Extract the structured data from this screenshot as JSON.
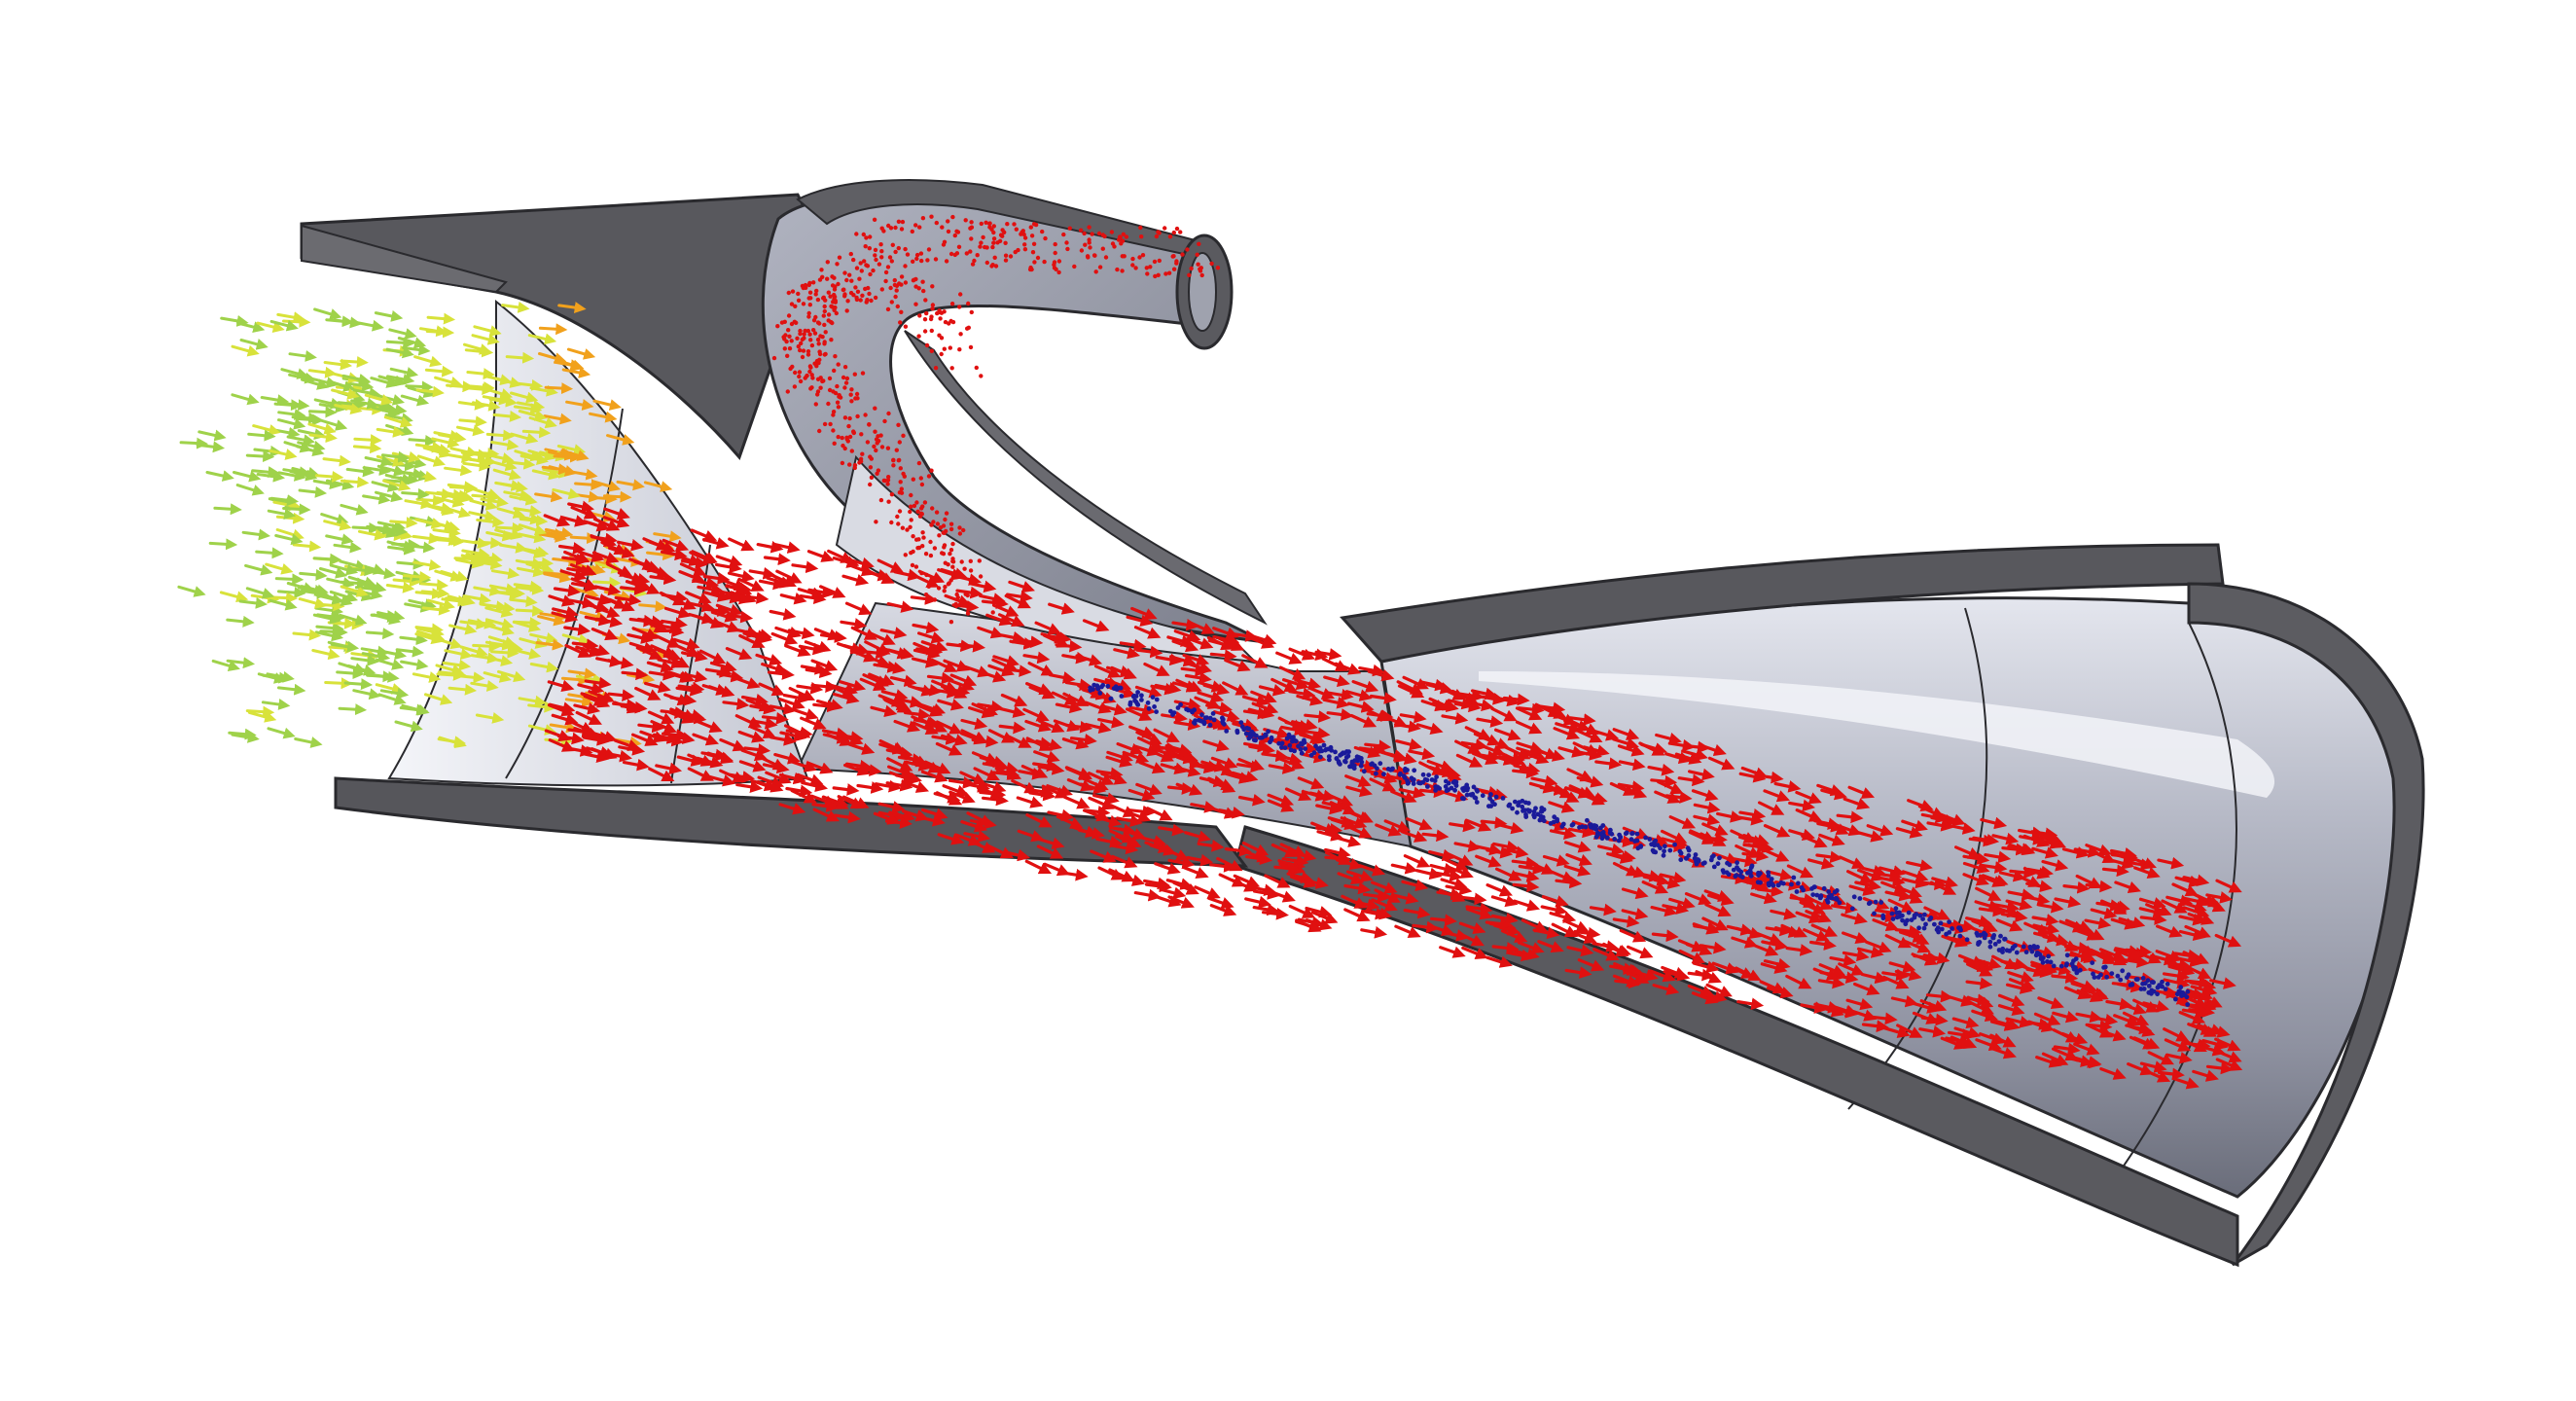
{
  "scene": {
    "background": "#ffffff",
    "model": "ejector-nozzle-section-view",
    "parts": [
      {
        "name": "inlet-flange"
      },
      {
        "name": "suction-bend-tube"
      },
      {
        "name": "motive-nozzle"
      },
      {
        "name": "mixing-throat"
      },
      {
        "name": "diffuser-cone"
      }
    ]
  },
  "colors": {
    "body_dark": "#5c5c61",
    "body_edge": "#2a2a2e",
    "inner_light": "#c9ccd6",
    "inner_mid": "#9a9daa",
    "inner_dark": "#6c6f7c",
    "highlight": "#eef0f6"
  },
  "flow": {
    "legend_shown": false,
    "arrow_colors": {
      "low_velocity": "#9fd24a",
      "mid_low_velocity": "#d8e23a",
      "mid_velocity": "#f1a11c",
      "high_velocity": "#e01010",
      "core_marker": "#1a1a9a"
    },
    "regions": [
      {
        "name": "inlet-stream",
        "color_key": "low_velocity"
      },
      {
        "name": "suction-stream",
        "color_key": "high_velocity"
      },
      {
        "name": "mixed-jet",
        "color_key": "high_velocity"
      },
      {
        "name": "jet-core",
        "color_key": "core_marker"
      }
    ]
  }
}
